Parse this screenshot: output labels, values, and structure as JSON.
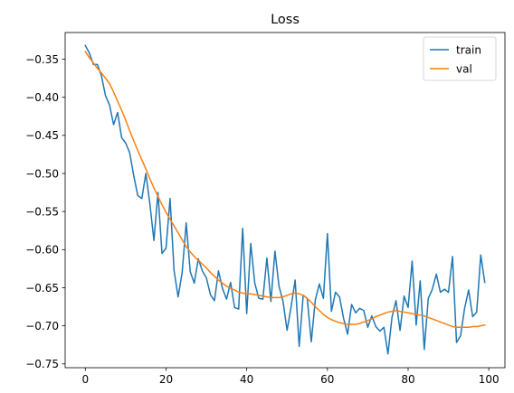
{
  "chart_data": {
    "type": "line",
    "title": "Loss",
    "xlabel": "",
    "ylabel": "",
    "xlim": [
      -5,
      104
    ],
    "ylim": [
      -0.755,
      -0.315
    ],
    "xticks": [
      0,
      20,
      40,
      60,
      80,
      100
    ],
    "xtick_labels": [
      "0",
      "20",
      "40",
      "60",
      "80",
      "100"
    ],
    "yticks": [
      -0.35,
      -0.4,
      -0.45,
      -0.5,
      -0.55,
      -0.6,
      -0.65,
      -0.7,
      -0.75
    ],
    "ytick_labels": [
      "−0.35",
      "−0.40",
      "−0.45",
      "−0.50",
      "−0.55",
      "−0.60",
      "−0.65",
      "−0.70",
      "−0.75"
    ],
    "grid": false,
    "legend_position": "top-right",
    "x": [
      0,
      1,
      2,
      3,
      4,
      5,
      6,
      7,
      8,
      9,
      10,
      11,
      12,
      13,
      14,
      15,
      16,
      17,
      18,
      19,
      20,
      21,
      22,
      23,
      24,
      25,
      26,
      27,
      28,
      29,
      30,
      31,
      32,
      33,
      34,
      35,
      36,
      37,
      38,
      39,
      40,
      41,
      42,
      43,
      44,
      45,
      46,
      47,
      48,
      49,
      50,
      51,
      52,
      53,
      54,
      55,
      56,
      57,
      58,
      59,
      60,
      61,
      62,
      63,
      64,
      65,
      66,
      67,
      68,
      69,
      70,
      71,
      72,
      73,
      74,
      75,
      76,
      77,
      78,
      79,
      80,
      81,
      82,
      83,
      84,
      85,
      86,
      87,
      88,
      89,
      90,
      91,
      92,
      93,
      94,
      95,
      96,
      97,
      98,
      99
    ],
    "series": [
      {
        "name": "train",
        "color": "#1f77b4",
        "values": [
          -0.332,
          -0.342,
          -0.357,
          -0.357,
          -0.372,
          -0.398,
          -0.41,
          -0.436,
          -0.42,
          -0.453,
          -0.46,
          -0.473,
          -0.503,
          -0.529,
          -0.533,
          -0.5,
          -0.54,
          -0.588,
          -0.525,
          -0.605,
          -0.598,
          -0.533,
          -0.628,
          -0.662,
          -0.63,
          -0.565,
          -0.629,
          -0.644,
          -0.612,
          -0.628,
          -0.637,
          -0.659,
          -0.667,
          -0.628,
          -0.651,
          -0.665,
          -0.643,
          -0.676,
          -0.678,
          -0.572,
          -0.684,
          -0.592,
          -0.644,
          -0.664,
          -0.665,
          -0.611,
          -0.668,
          -0.602,
          -0.648,
          -0.668,
          -0.706,
          -0.675,
          -0.64,
          -0.727,
          -0.66,
          -0.664,
          -0.721,
          -0.666,
          -0.645,
          -0.664,
          -0.579,
          -0.681,
          -0.656,
          -0.662,
          -0.69,
          -0.711,
          -0.672,
          -0.683,
          -0.677,
          -0.68,
          -0.702,
          -0.687,
          -0.701,
          -0.707,
          -0.702,
          -0.737,
          -0.689,
          -0.667,
          -0.706,
          -0.661,
          -0.676,
          -0.615,
          -0.699,
          -0.641,
          -0.731,
          -0.664,
          -0.652,
          -0.632,
          -0.656,
          -0.652,
          -0.656,
          -0.609,
          -0.722,
          -0.713,
          -0.677,
          -0.653,
          -0.688,
          -0.682,
          -0.607,
          -0.643
        ]
      },
      {
        "name": "val",
        "color": "#ff7f0e",
        "values": [
          -0.34,
          -0.348,
          -0.355,
          -0.362,
          -0.368,
          -0.375,
          -0.382,
          -0.393,
          -0.405,
          -0.417,
          -0.43,
          -0.444,
          -0.457,
          -0.47,
          -0.482,
          -0.494,
          -0.507,
          -0.519,
          -0.53,
          -0.541,
          -0.551,
          -0.56,
          -0.569,
          -0.578,
          -0.587,
          -0.596,
          -0.603,
          -0.609,
          -0.614,
          -0.619,
          -0.624,
          -0.63,
          -0.635,
          -0.64,
          -0.644,
          -0.648,
          -0.651,
          -0.653,
          -0.656,
          -0.657,
          -0.658,
          -0.658,
          -0.659,
          -0.66,
          -0.661,
          -0.662,
          -0.663,
          -0.663,
          -0.663,
          -0.662,
          -0.66,
          -0.658,
          -0.657,
          -0.658,
          -0.66,
          -0.664,
          -0.669,
          -0.675,
          -0.68,
          -0.685,
          -0.689,
          -0.692,
          -0.694,
          -0.696,
          -0.697,
          -0.698,
          -0.698,
          -0.698,
          -0.697,
          -0.695,
          -0.693,
          -0.691,
          -0.688,
          -0.686,
          -0.684,
          -0.682,
          -0.681,
          -0.68,
          -0.681,
          -0.682,
          -0.683,
          -0.684,
          -0.685,
          -0.686,
          -0.687,
          -0.689,
          -0.691,
          -0.693,
          -0.695,
          -0.697,
          -0.699,
          -0.701,
          -0.702,
          -0.702,
          -0.702,
          -0.702,
          -0.701,
          -0.701,
          -0.7,
          -0.699
        ]
      }
    ]
  }
}
